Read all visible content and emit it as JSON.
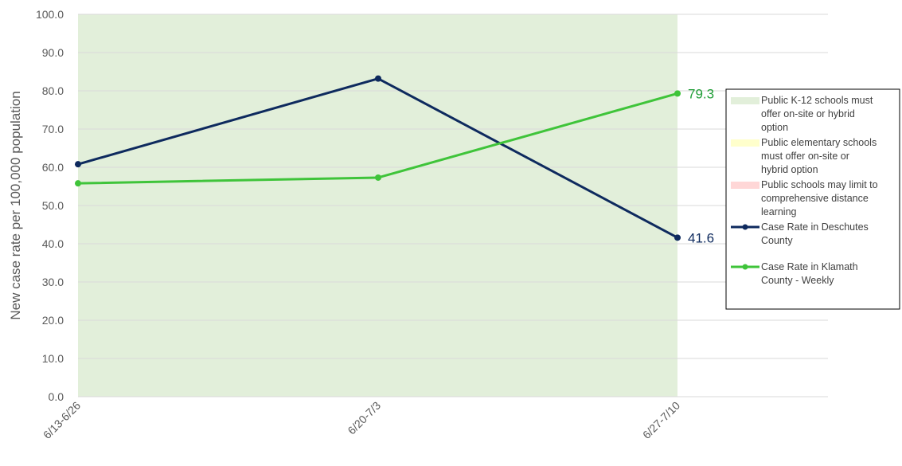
{
  "chart_data": {
    "type": "line",
    "title": "",
    "xlabel": "",
    "ylabel": "New case rate per 100,000 population",
    "categories": [
      "6/13-6/26",
      "6/20-7/3",
      "6/27-7/10"
    ],
    "y_ticks": [
      "0.0",
      "10.0",
      "20.0",
      "30.0",
      "40.0",
      "50.0",
      "60.0",
      "70.0",
      "80.0",
      "90.0",
      "100.0"
    ],
    "ylim": [
      0,
      100
    ],
    "grid": "horizontal",
    "legend_position": "right",
    "shaded_regions": [
      {
        "name": "Public K-12 schools must offer on-site or hybrid option",
        "legend_lines": [
          "Public K-12 schools must",
          "offer on-site or hybrid",
          "option"
        ],
        "color": "#e2efda",
        "from_category": "6/13-6/26",
        "to_category": "6/27-7/10"
      },
      {
        "name": "Public elementary schools must offer on-site or hybrid option",
        "legend_lines": [
          "Public elementary schools",
          "must offer on-site or",
          "hybrid option"
        ],
        "color": "#ffffcc"
      },
      {
        "name": "Public schools may limit to comprehensive distance learning",
        "legend_lines": [
          "Public schools may limit to",
          "comprehensive distance",
          "learning"
        ],
        "color": "#ffd7d7"
      }
    ],
    "series": [
      {
        "name": "Case Rate in Deschutes County",
        "legend_lines": [
          "Case Rate in Deschutes",
          "County"
        ],
        "color": "#0e2a5e",
        "values": [
          60.8,
          83.2,
          41.6
        ],
        "end_label": "41.6"
      },
      {
        "name": "Case Rate in Klamath County - Weekly",
        "legend_lines": [
          "Case Rate in Klamath",
          "County - Weekly"
        ],
        "color": "#3fc43a",
        "label_color": "#1f9d36",
        "values": [
          55.8,
          57.3,
          79.3
        ],
        "end_label": "79.3"
      }
    ]
  }
}
